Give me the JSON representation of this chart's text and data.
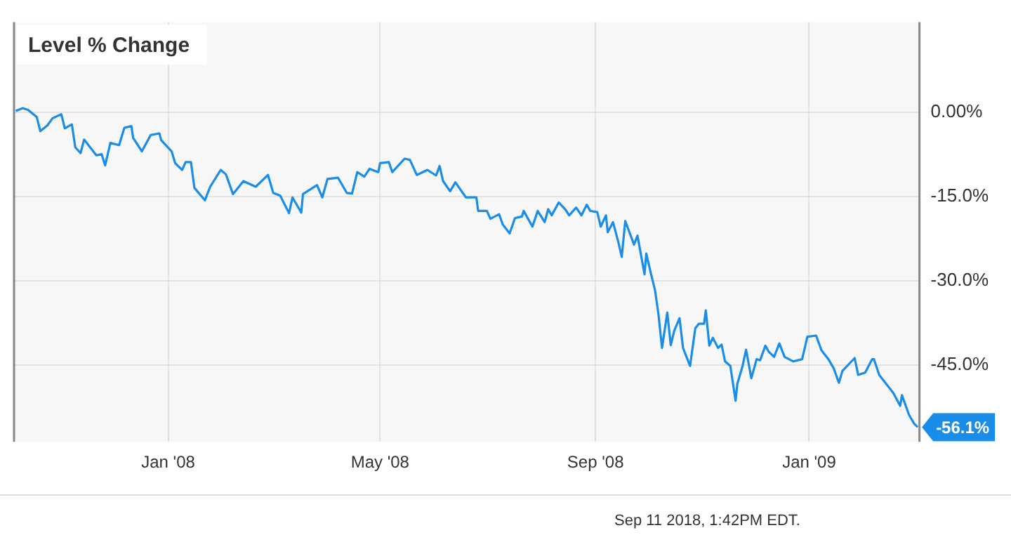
{
  "chart_data": {
    "type": "line",
    "title": "Level % Change",
    "annotations": [
      {
        "text": "-56.1%",
        "x": "2009-03-04",
        "y": -56.1
      },
      "Sep 11 2018, 1:42PM EDT."
    ],
    "x": [
      "2007-10-06",
      "2007-10-10",
      "2007-10-13",
      "2007-10-18",
      "2007-10-20",
      "2007-10-24",
      "2007-10-27",
      "2007-11-01",
      "2007-11-03",
      "2007-11-07",
      "2007-11-09",
      "2007-11-12",
      "2007-11-14",
      "2007-11-21",
      "2007-11-24",
      "2007-11-26",
      "2007-11-29",
      "2007-12-04",
      "2007-12-07",
      "2007-12-11",
      "2007-12-12",
      "2007-12-17",
      "2007-12-22",
      "2007-12-27",
      "2007-12-28",
      "2008-01-03",
      "2008-01-05",
      "2008-01-09",
      "2008-01-11",
      "2008-01-14",
      "2008-01-16",
      "2008-01-22",
      "2008-01-25",
      "2008-01-31",
      "2008-02-03",
      "2008-02-07",
      "2008-02-13",
      "2008-02-20",
      "2008-02-27",
      "2008-03-01",
      "2008-03-05",
      "2008-03-10",
      "2008-03-12",
      "2008-03-17",
      "2008-03-18",
      "2008-03-26",
      "2008-03-29",
      "2008-04-01",
      "2008-04-07",
      "2008-04-12",
      "2008-04-15",
      "2008-04-18",
      "2008-04-22",
      "2008-04-25",
      "2008-04-30",
      "2008-05-01",
      "2008-05-06",
      "2008-05-08",
      "2008-05-15",
      "2008-05-18",
      "2008-05-22",
      "2008-05-28",
      "2008-06-02",
      "2008-06-04",
      "2008-06-06",
      "2008-06-10",
      "2008-06-13",
      "2008-06-19",
      "2008-06-25",
      "2008-06-26",
      "2008-07-01",
      "2008-07-03",
      "2008-07-08",
      "2008-07-10",
      "2008-07-14",
      "2008-07-17",
      "2008-07-21",
      "2008-07-22",
      "2008-07-27",
      "2008-07-30",
      "2008-08-03",
      "2008-08-05",
      "2008-08-07",
      "2008-08-11",
      "2008-08-15",
      "2008-08-17",
      "2008-08-21",
      "2008-08-24",
      "2008-08-27",
      "2008-08-29",
      "2008-09-02",
      "2008-09-04",
      "2008-09-07",
      "2008-09-08",
      "2008-09-11",
      "2008-09-14",
      "2008-09-16",
      "2008-09-18",
      "2008-09-23",
      "2008-09-25",
      "2008-09-29",
      "2008-09-30",
      "2008-10-03",
      "2008-10-05",
      "2008-10-07",
      "2008-10-09",
      "2008-10-12",
      "2008-10-14",
      "2008-10-16",
      "2008-10-19",
      "2008-10-21",
      "2008-10-25",
      "2008-10-28",
      "2008-10-30",
      "2008-11-02",
      "2008-11-03",
      "2008-11-05",
      "2008-11-07",
      "2008-11-10",
      "2008-11-12",
      "2008-11-14",
      "2008-11-17",
      "2008-11-20",
      "2008-11-21",
      "2008-11-24",
      "2008-11-26",
      "2008-11-29",
      "2008-12-02",
      "2008-12-04",
      "2008-12-07",
      "2008-12-09",
      "2008-12-12",
      "2008-12-15",
      "2008-12-18",
      "2008-12-23",
      "2008-12-28",
      "2008-12-31",
      "2009-01-05",
      "2009-01-08",
      "2009-01-12",
      "2009-01-15",
      "2009-01-18",
      "2009-01-20",
      "2009-01-27",
      "2009-01-29",
      "2009-02-02",
      "2009-02-06",
      "2009-02-07",
      "2009-02-10",
      "2009-02-14",
      "2009-02-18",
      "2009-02-22",
      "2009-02-23",
      "2009-02-27",
      "2009-03-02",
      "2009-03-04"
    ],
    "series": [
      {
        "color": "#1a8de8",
        "values": [
          0.2,
          0.7,
          0.4,
          -0.9,
          -3.4,
          -2.4,
          -1.1,
          -0.4,
          -2.9,
          -2.2,
          -6.3,
          -7.3,
          -4.9,
          -7.7,
          -7.5,
          -9.5,
          -5.5,
          -5.9,
          -2.8,
          -2.5,
          -4.6,
          -7.0,
          -4.1,
          -3.8,
          -5.0,
          -7.0,
          -9.1,
          -10.3,
          -8.9,
          -8.9,
          -13.5,
          -15.7,
          -13.3,
          -10.3,
          -11.1,
          -14.6,
          -12.3,
          -13.3,
          -11.2,
          -14.4,
          -14.9,
          -18.0,
          -15.2,
          -17.9,
          -14.6,
          -13.0,
          -15.2,
          -11.9,
          -11.7,
          -14.4,
          -14.5,
          -10.7,
          -11.5,
          -10.1,
          -10.7,
          -9.1,
          -8.9,
          -10.7,
          -8.3,
          -8.5,
          -11.2,
          -10.3,
          -11.3,
          -9.6,
          -12.3,
          -14.1,
          -12.5,
          -15.2,
          -15.2,
          -17.6,
          -17.6,
          -19.0,
          -18.2,
          -20.0,
          -21.6,
          -18.9,
          -18.6,
          -17.6,
          -20.4,
          -17.6,
          -19.6,
          -17.3,
          -18.4,
          -16.1,
          -17.4,
          -18.4,
          -17.0,
          -18.4,
          -16.5,
          -17.6,
          -17.8,
          -20.4,
          -18.4,
          -21.4,
          -19.6,
          -23.1,
          -25.8,
          -19.4,
          -23.6,
          -22.0,
          -28.9,
          -25.2,
          -29.2,
          -31.7,
          -36.1,
          -42.0,
          -35.7,
          -41.5,
          -38.9,
          -36.7,
          -42.0,
          -45.2,
          -38.5,
          -37.7,
          -37.7,
          -35.3,
          -41.6,
          -40.2,
          -42.0,
          -41.4,
          -44.4,
          -45.2,
          -51.4,
          -48.4,
          -45.2,
          -42.3,
          -47.4,
          -44.0,
          -44.2,
          -41.6,
          -42.7,
          -43.6,
          -41.2,
          -43.6,
          -44.4,
          -44.0,
          -40.0,
          -39.8,
          -42.4,
          -44.0,
          -45.6,
          -48.2,
          -46.1,
          -43.8,
          -46.8,
          -46.4,
          -44.0,
          -44.0,
          -46.8,
          -48.4,
          -50.0,
          -52.3,
          -50.4,
          -53.9,
          -55.5,
          -56.1
        ]
      }
    ],
    "xlim": [
      "2007-10-05",
      "2009-03-05"
    ],
    "xticks": [
      {
        "value": "2008-01-01",
        "label": "Jan '08"
      },
      {
        "value": "2008-05-01",
        "label": "May '08"
      },
      {
        "value": "2008-09-01",
        "label": "Sep '08"
      },
      {
        "value": "2009-01-01",
        "label": "Jan '09"
      }
    ],
    "ylim": [
      -58.7,
      16
    ],
    "yticks": [
      {
        "value": 0,
        "label": "0.00%"
      },
      {
        "value": -15,
        "label": "-15.0%"
      },
      {
        "value": -30,
        "label": "-30.0%"
      },
      {
        "value": -45,
        "label": "-45.0%"
      }
    ],
    "grid": true,
    "legend": false,
    "marker": "none",
    "line_style": "solid"
  }
}
